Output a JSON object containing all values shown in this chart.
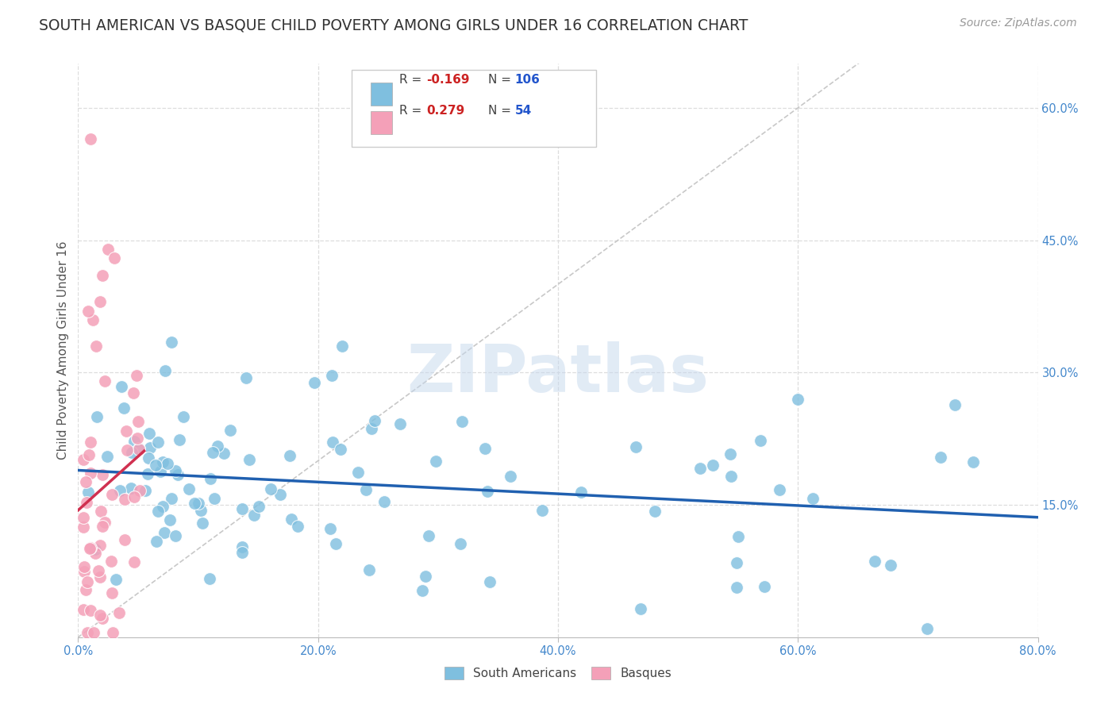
{
  "title": "SOUTH AMERICAN VS BASQUE CHILD POVERTY AMONG GIRLS UNDER 16 CORRELATION CHART",
  "source": "Source: ZipAtlas.com",
  "ylabel": "Child Poverty Among Girls Under 16",
  "xlim": [
    0.0,
    0.8
  ],
  "ylim": [
    0.0,
    0.65
  ],
  "xticks": [
    0.0,
    0.2,
    0.4,
    0.6,
    0.8
  ],
  "xticklabels": [
    "0.0%",
    "20.0%",
    "40.0%",
    "60.0%",
    "80.0%"
  ],
  "yticks_right": [
    0.15,
    0.3,
    0.45,
    0.6
  ],
  "yticklabels_right": [
    "15.0%",
    "30.0%",
    "45.0%",
    "60.0%"
  ],
  "watermark": "ZIPatlas",
  "blue_color": "#7fbfdf",
  "pink_color": "#f4a0b8",
  "blue_line_color": "#2060b0",
  "pink_line_color": "#d03050",
  "diagonal_color": "#cccccc",
  "background_color": "#ffffff",
  "grid_color": "#dddddd",
  "title_color": "#333333",
  "axis_label_color": "#555555",
  "tick_color": "#4488cc",
  "legend_r_color": "#cc2222",
  "legend_n_color": "#2255cc"
}
